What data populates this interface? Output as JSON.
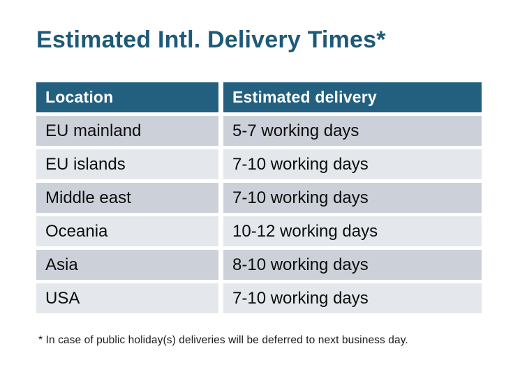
{
  "title": "Estimated Intl. Delivery Times*",
  "table": {
    "headers": [
      "Location",
      "Estimated delivery"
    ],
    "rows": [
      {
        "location": "EU mainland",
        "delivery": "5-7 working days"
      },
      {
        "location": "EU islands",
        "delivery": "7-10 working days"
      },
      {
        "location": "Middle east",
        "delivery": "7-10 working days"
      },
      {
        "location": "Oceania",
        "delivery": "10-12 working days"
      },
      {
        "location": "Asia",
        "delivery": "8-10 working days"
      },
      {
        "location": "USA",
        "delivery": "7-10 working days"
      }
    ]
  },
  "footnote": "* In case of public holiday(s) deliveries will be deferred to next business day.",
  "colors": {
    "header_bg": "#236080",
    "header_text": "#ffffff",
    "title_text": "#1e5a78",
    "row_odd_bg": "#ccd1d9",
    "row_even_bg": "#e4e8ec",
    "cell_text": "#0c0c0c",
    "background": "#ffffff"
  }
}
